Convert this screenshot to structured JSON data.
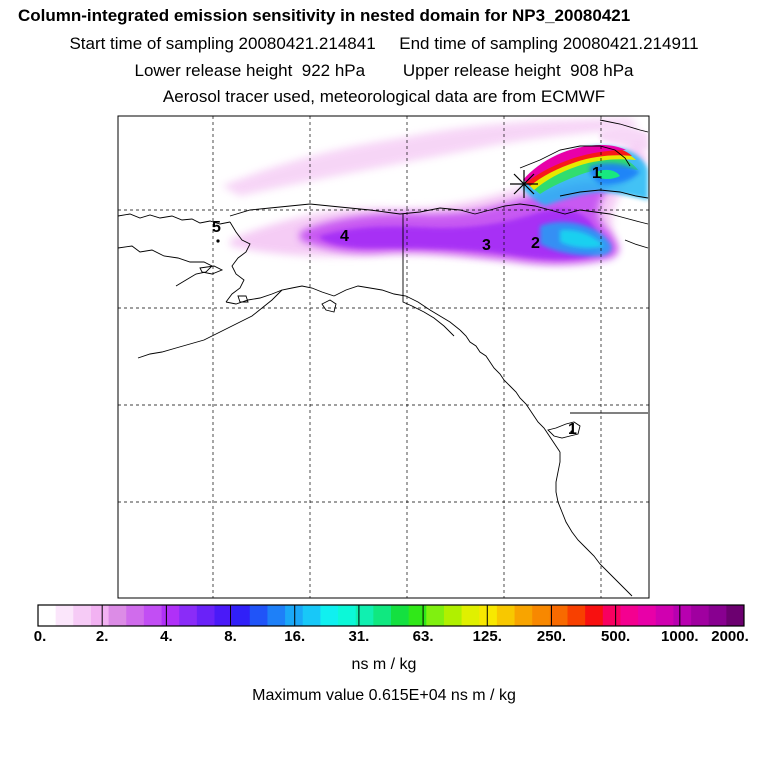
{
  "header": {
    "title": "Column-integrated emission sensitivity in nested domain for NP3_20080421",
    "sampling_line": "Start time of sampling 20080421.214841     End time of sampling 20080421.214911",
    "release_line": "Lower release height  922 hPa        Upper release height  908 hPa",
    "tracer_line": "Aerosol tracer used, meteorological data are from ECMWF"
  },
  "markers": [
    {
      "label": "1"
    },
    {
      "label": "2"
    },
    {
      "label": "3"
    },
    {
      "label": "4"
    },
    {
      "label": "5"
    }
  ],
  "colorbar": {
    "labels": [
      "0.",
      "2.",
      "4.",
      "8.",
      "16.",
      "31.",
      "63.",
      "125.",
      "250.",
      "500.",
      "1000.",
      "2000."
    ],
    "colors": [
      "#ffffff",
      "#fbe6fb",
      "#f6cbf6",
      "#f2b2f2",
      "#dc8ce6",
      "#d06cec",
      "#c24ef4",
      "#b030f8",
      "#8a2cf8",
      "#6a22f8",
      "#4a1af8",
      "#3020f8",
      "#2054f8",
      "#1e80f8",
      "#1aa8f8",
      "#18c8f8",
      "#10f0f0",
      "#0cf8d8",
      "#10f0b0",
      "#10e880",
      "#14e040",
      "#30e818",
      "#80f010",
      "#b0f000",
      "#e0f000",
      "#f8e800",
      "#f8c800",
      "#f8a400",
      "#f88800",
      "#f86a00",
      "#f84000",
      "#f81010",
      "#f80060",
      "#f40090",
      "#e800a8",
      "#d000b0",
      "#b800b0",
      "#a000a0",
      "#880090",
      "#6c0070"
    ],
    "units": "ns m / kg"
  },
  "maximum": "Maximum value  0.615E+04 ns m / kg"
}
